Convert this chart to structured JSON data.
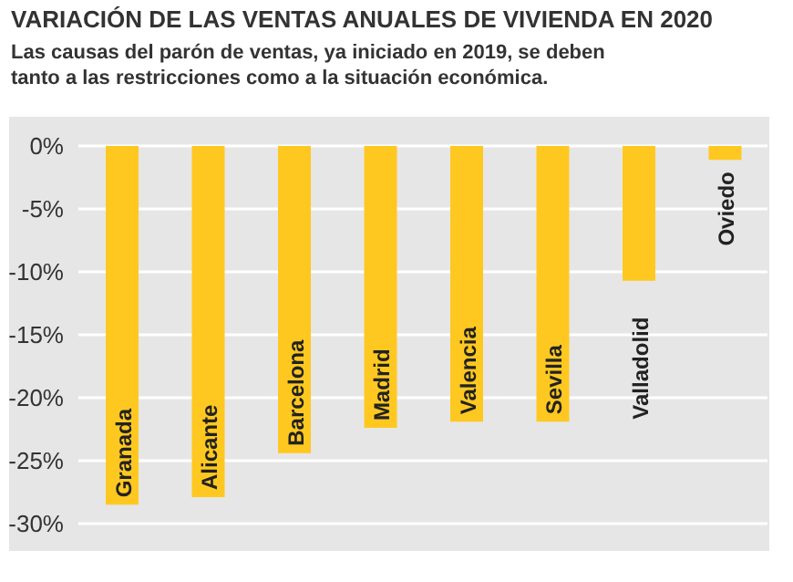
{
  "chart_data": {
    "type": "bar",
    "title": "VARIACIÓN DE LAS VENTAS ANUALES DE VIVIENDA EN 2020",
    "subtitle": "Las causas del parón de ventas, ya iniciado en 2019, se deben tanto a las restricciones como a la situación económica.",
    "categories": [
      "Granada",
      "Alicante",
      "Barcelona",
      "Madrid",
      "Valencia",
      "Sevilla",
      "Valladolid",
      "Oviedo"
    ],
    "values": [
      -28.5,
      -27.9,
      -24.4,
      -22.4,
      -21.9,
      -21.9,
      -10.7,
      -1.1
    ],
    "color": "#ffc820",
    "ylim": [
      -30,
      0
    ],
    "yticks": [
      {
        "value": 0,
        "label": "0%"
      },
      {
        "value": -5,
        "label": "-5%"
      },
      {
        "value": -10,
        "label": "-10%"
      },
      {
        "value": -15,
        "label": "-15%"
      },
      {
        "value": -20,
        "label": "-20%"
      },
      {
        "value": -25,
        "label": "-25%"
      },
      {
        "value": -30,
        "label": "-30%"
      }
    ],
    "grid": "y"
  }
}
